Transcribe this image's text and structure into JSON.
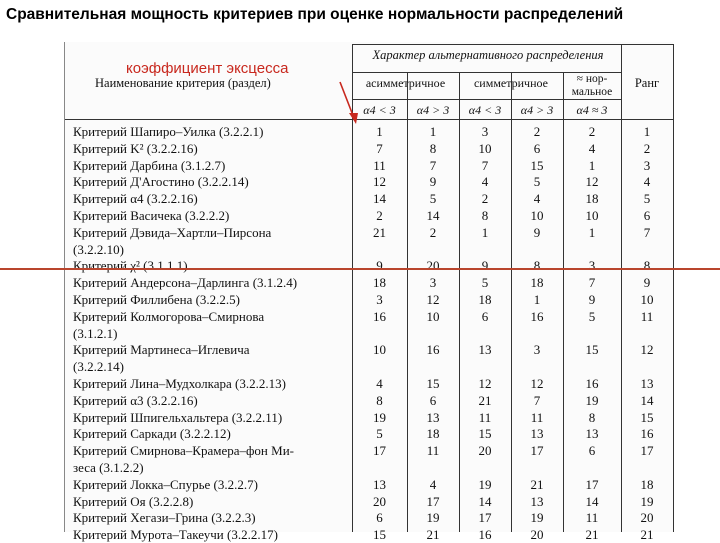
{
  "title": "Сравнительная мощность критериев при оценке нормальности распределений",
  "annotation": {
    "label": "коэффициент эксцесса",
    "color": "#c8281e",
    "line_color": "#b9452d"
  },
  "table": {
    "group_header": "Характер альтернативного распределения",
    "col_name_header": "Наименование критерия (раздел)",
    "sub_headers": [
      "асимметричное",
      "симметричное",
      "≈ нор-",
      "мальное"
    ],
    "rank_header": "Ранг",
    "kurtosis_headers": [
      "α4 < 3",
      "α4 > 3",
      "α4 < 3",
      "α4 > 3",
      "α4 ≈ 3"
    ],
    "rows": [
      {
        "name": "Критерий Шапиро–Уилка (3.2.2.1)",
        "v": [
          "1",
          "1",
          "3",
          "2",
          "2",
          "1"
        ]
      },
      {
        "name": "Критерий K² (3.2.2.16)",
        "v": [
          "7",
          "8",
          "10",
          "6",
          "4",
          "2"
        ]
      },
      {
        "name": "Критерий Дарбина (3.1.2.7)",
        "v": [
          "11",
          "7",
          "7",
          "15",
          "1",
          "3"
        ]
      },
      {
        "name": "Критерий Д'Агостино (3.2.2.14)",
        "v": [
          "12",
          "9",
          "4",
          "5",
          "12",
          "4"
        ]
      },
      {
        "name": "Критерий α4 (3.2.2.16)",
        "v": [
          "14",
          "5",
          "2",
          "4",
          "18",
          "5"
        ]
      },
      {
        "name": "Критерий Васичека (3.2.2.2)",
        "v": [
          "2",
          "14",
          "8",
          "10",
          "10",
          "6"
        ]
      },
      {
        "name": "Критерий Дэвида–Хартли–Пирсона",
        "name2": "(3.2.2.10)",
        "v": [
          "21",
          "2",
          "1",
          "9",
          "1",
          "7"
        ]
      },
      {
        "name": "Критерий χ² (3.1.1.1)",
        "v": [
          "9",
          "20",
          "9",
          "8",
          "3",
          "8"
        ]
      },
      {
        "name": "Критерий Андерсона–Дарлинга (3.1.2.4)",
        "v": [
          "18",
          "3",
          "5",
          "18",
          "7",
          "9"
        ]
      },
      {
        "name": "Критерий Филлибена (3.2.2.5)",
        "v": [
          "3",
          "12",
          "18",
          "1",
          "9",
          "10"
        ]
      },
      {
        "name": "Критерий Колмогорова–Смирнова",
        "name2": "(3.1.2.1)",
        "v": [
          "16",
          "10",
          "6",
          "16",
          "5",
          "11"
        ]
      },
      {
        "name": "Критерий Мартинеса–Иглевича",
        "name2": "(3.2.2.14)",
        "v": [
          "10",
          "16",
          "13",
          "3",
          "15",
          "12"
        ]
      },
      {
        "name": "Критерий Лина–Мудхолкара (3.2.2.13)",
        "v": [
          "4",
          "15",
          "12",
          "12",
          "16",
          "13"
        ]
      },
      {
        "name": "Критерий α3 (3.2.2.16)",
        "v": [
          "8",
          "6",
          "21",
          "7",
          "19",
          "14"
        ]
      },
      {
        "name": "Критерий Шпигельхальтера (3.2.2.11)",
        "v": [
          "19",
          "13",
          "11",
          "11",
          "8",
          "15"
        ]
      },
      {
        "name": "Критерий Саркади (3.2.2.12)",
        "v": [
          "5",
          "18",
          "15",
          "13",
          "13",
          "16"
        ]
      },
      {
        "name": "Критерий Смирнова–Крамера–фон Ми-",
        "name2": "зеса (3.1.2.2)",
        "v": [
          "17",
          "11",
          "20",
          "17",
          "6",
          "17"
        ]
      },
      {
        "name": "Критерий Локка–Спурье (3.2.2.7)",
        "v": [
          "13",
          "4",
          "19",
          "21",
          "17",
          "18"
        ]
      },
      {
        "name": "Критерий Оя (3.2.2.8)",
        "v": [
          "20",
          "17",
          "14",
          "13",
          "14",
          "19"
        ]
      },
      {
        "name": "Критерий Хегази–Грина (3.2.2.3)",
        "v": [
          "6",
          "19",
          "17",
          "19",
          "11",
          "20"
        ]
      },
      {
        "name": "Критерий Мурота–Такеучи (3.2.2.17)",
        "v": [
          "15",
          "21",
          "16",
          "20",
          "21",
          "21"
        ]
      }
    ]
  }
}
